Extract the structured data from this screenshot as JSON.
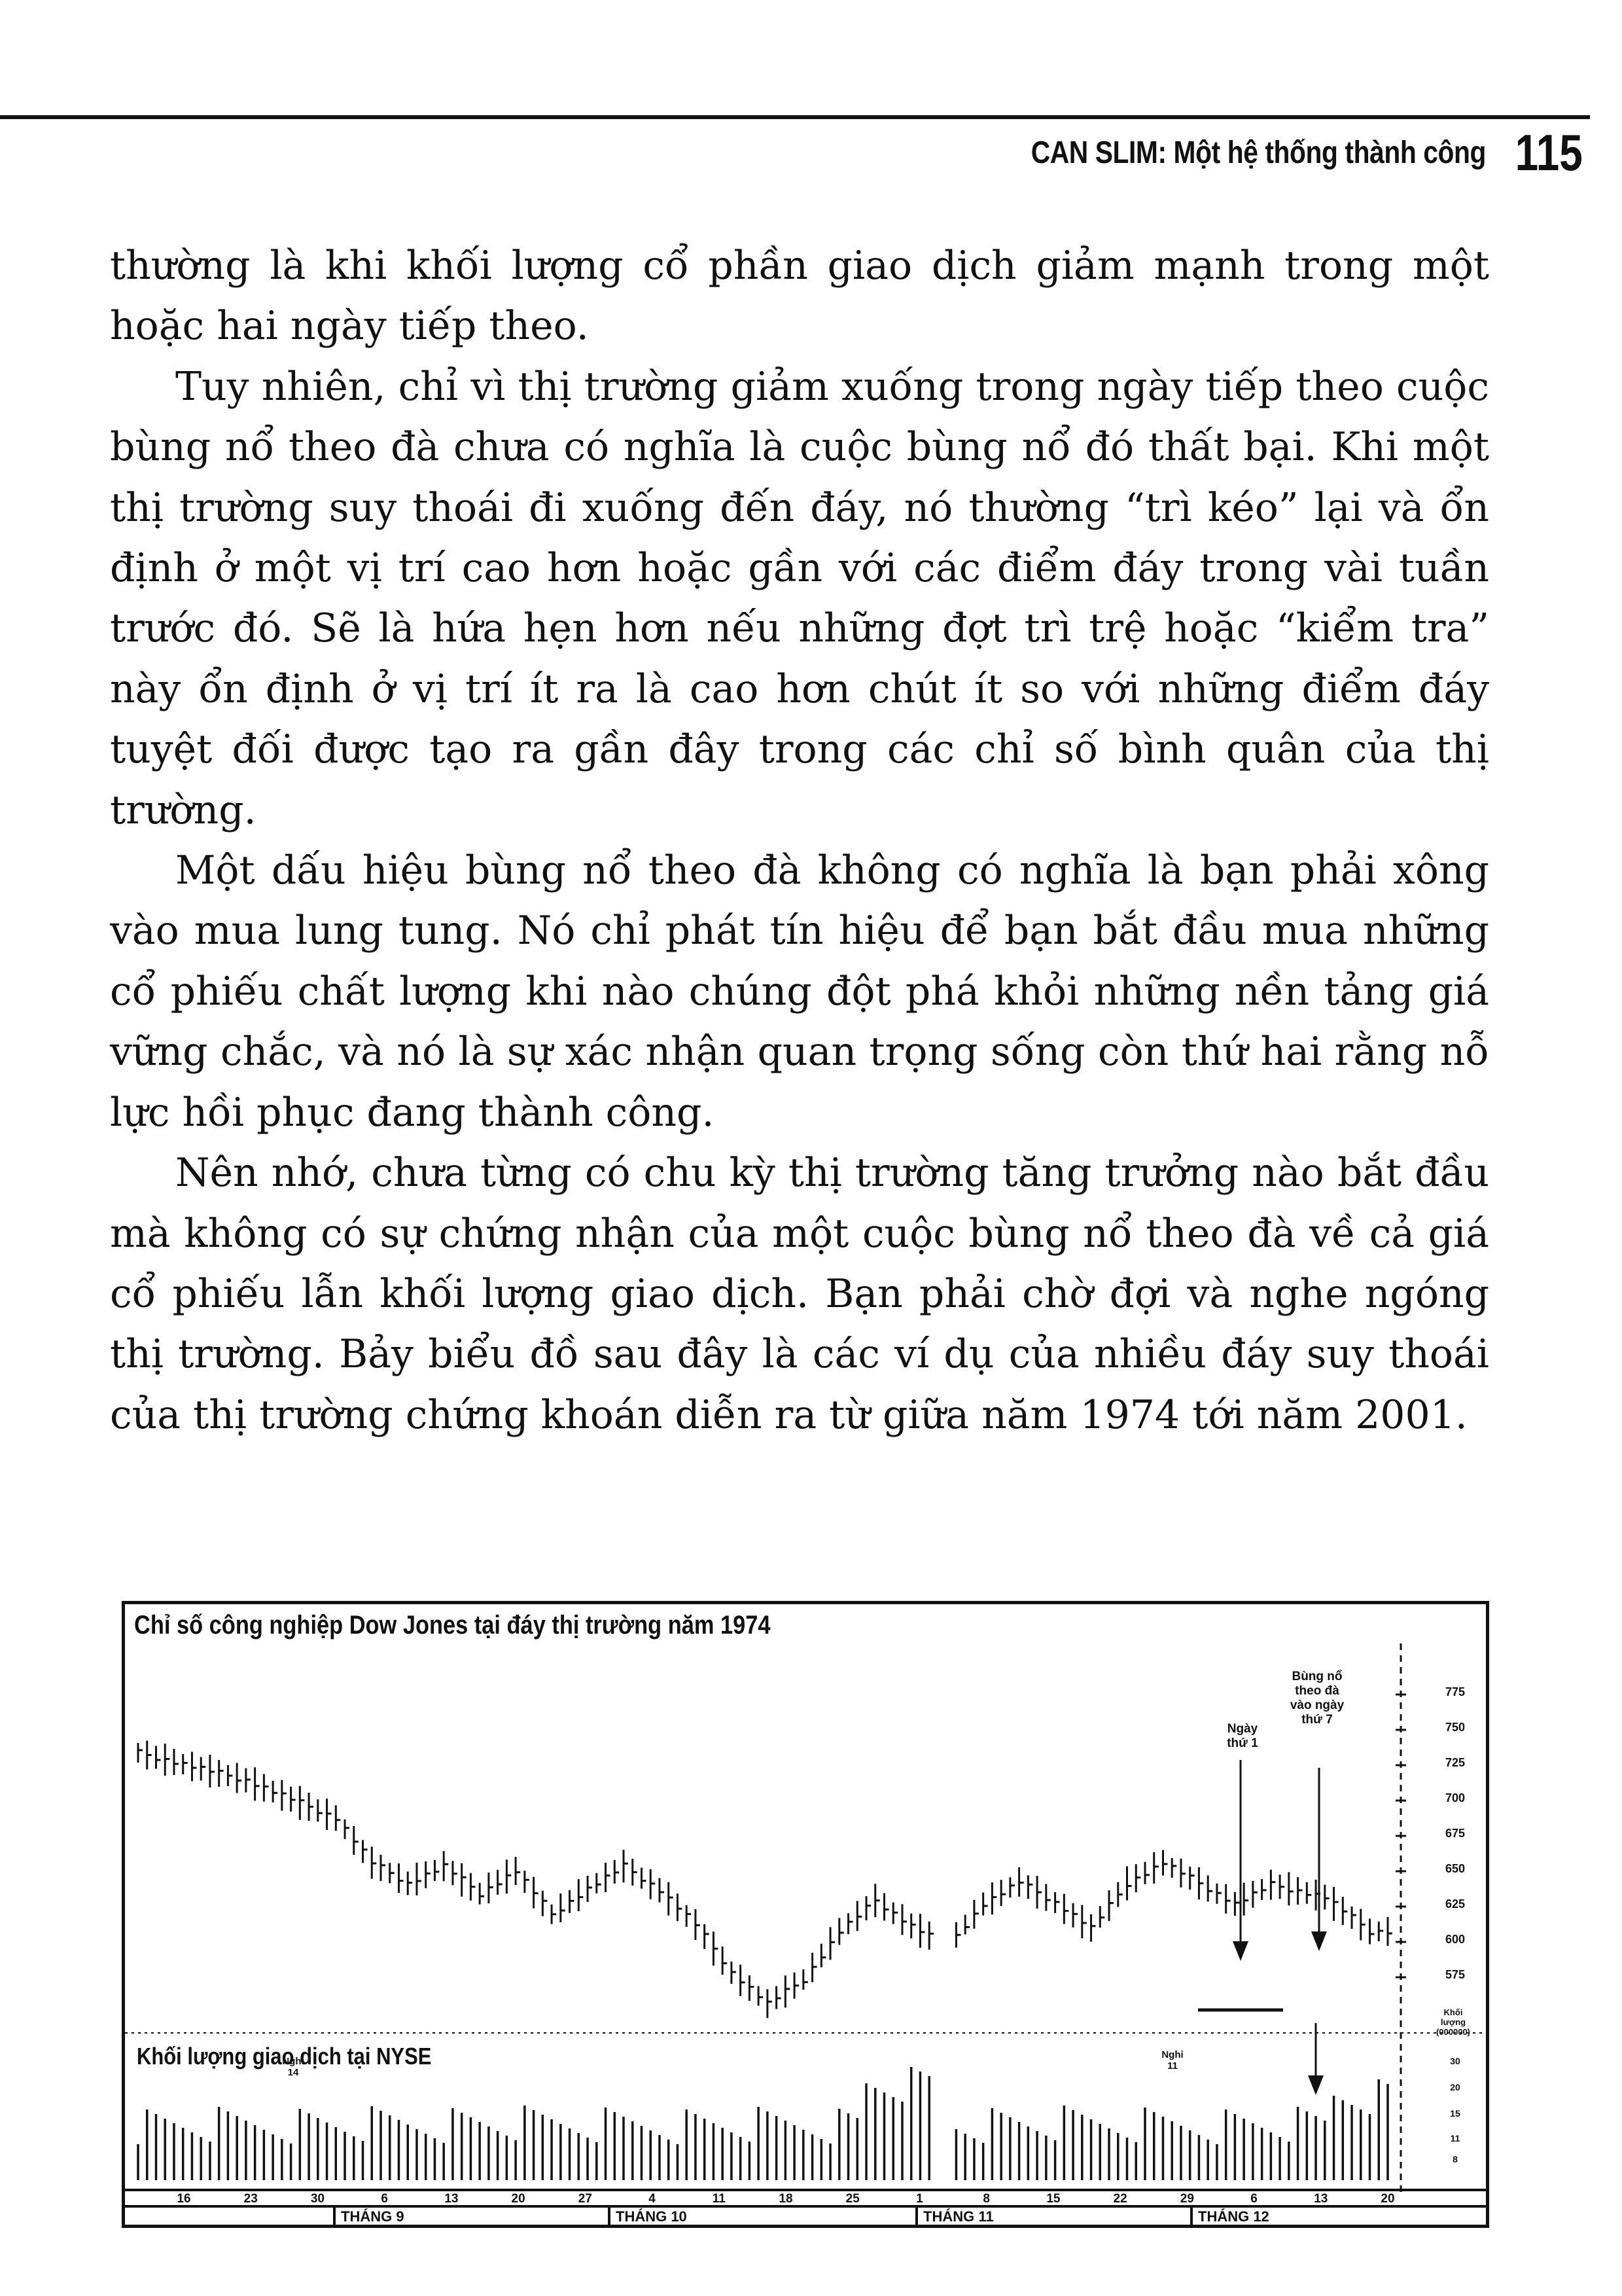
{
  "header": {
    "running_title": "CAN SLIM: Một hệ thống thành công",
    "page_number": "115"
  },
  "paragraphs": [
    "thường là khi khối lượng cổ phần giao dịch giảm mạnh trong một hoặc hai ngày tiếp theo.",
    "Tuy nhiên, chỉ vì thị trường giảm xuống trong ngày tiếp theo cuộc bùng nổ theo đà chưa có nghĩa là cuộc bùng nổ đó thất bại. Khi một thị trường suy thoái đi xuống đến đáy, nó thường “trì kéo” lại và ổn định ở một vị trí cao hơn hoặc gần với các điểm đáy trong vài tuần trước đó. Sẽ là hứa hẹn hơn nếu những đợt trì trệ hoặc “kiểm tra” này ổn định ở vị trí ít ra là cao hơn chút ít so với những điểm đáy tuyệt đối được tạo ra gần đây trong các chỉ số bình quân của thị trường.",
    "Một dấu hiệu bùng nổ theo đà không có nghĩa là bạn phải xông vào mua lung tung. Nó chỉ phát tín hiệu để bạn bắt đầu mua những cổ phiếu chất lượng khi nào chúng đột phá khỏi những nền tảng giá vững chắc, và nó là sự xác nhận quan trọng sống còn thứ hai rằng nỗ lực hồi phục đang thành công.",
    "Nên nhớ, chưa từng có chu kỳ thị trường tăng trưởng nào bắt đầu mà không có sự chứng nhận của một cuộc bùng nổ theo đà về cả giá cổ phiếu lẫn khối lượng giao dịch. Bạn phải chờ đợi và nghe ngóng thị trường. Bảy biểu đồ sau đây là các ví dụ của nhiều đáy suy thoái của thị trường chứng khoán diễn ra từ giữa năm 1974 tới năm 2001."
  ],
  "figure": {
    "title": "Chỉ số công nghiệp Dow Jones tại đáy thị trường năm 1974",
    "volume_label": "Khối lượng giao dịch tại NYSE",
    "annotations": {
      "day1": "Ngày\nthứ 1",
      "ftd": "Bùng nổ\ntheo đà\nvào ngày\nthứ 7",
      "holiday1": "Nghỉ\n14",
      "holiday2": "Nghỉ\n11",
      "vol_units": "Khối\nlượng\n(000000)"
    },
    "price_axis": [
      "775",
      "750",
      "725",
      "700",
      "675",
      "650",
      "625",
      "600",
      "575"
    ],
    "volume_axis": [
      "30",
      "20",
      "15",
      "11",
      "8"
    ],
    "date_ticks": [
      "16",
      "23",
      "30",
      "6",
      "13",
      "20",
      "27",
      "4",
      "11",
      "18",
      "25",
      "1",
      "8",
      "15",
      "22",
      "29",
      "6",
      "13",
      "20"
    ],
    "months": [
      "THÁNG 9",
      "THÁNG 10",
      "THÁNG 11",
      "THÁNG 12"
    ]
  }
}
